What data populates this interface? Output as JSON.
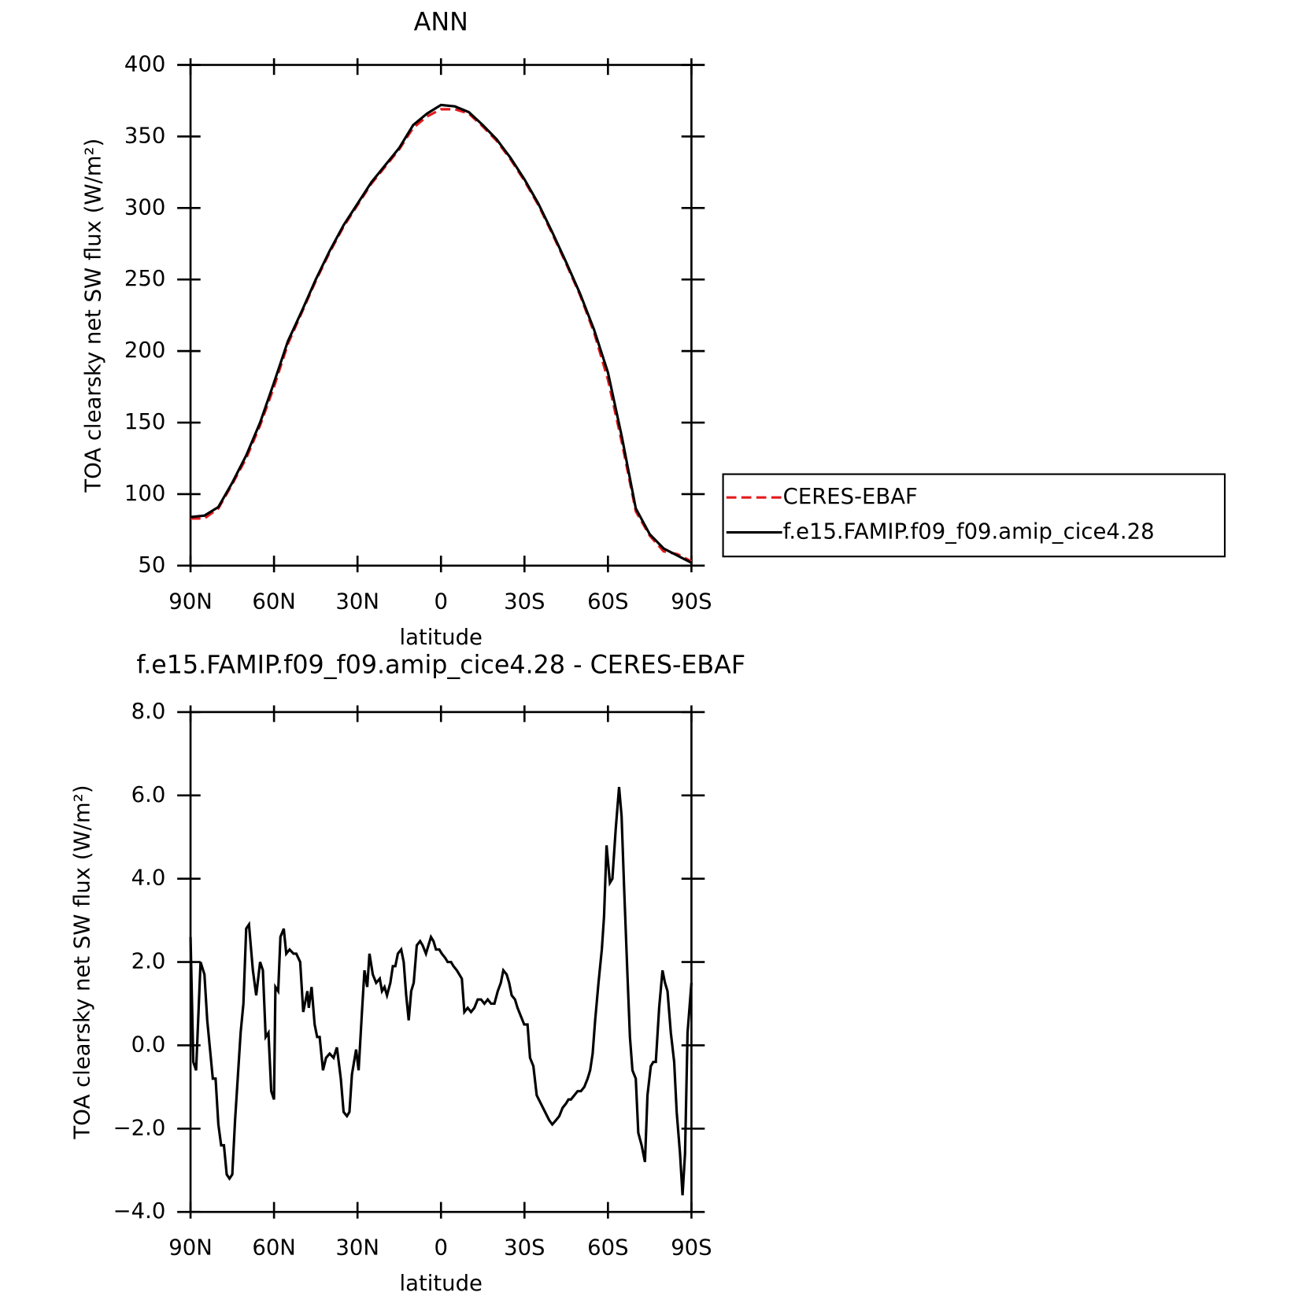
{
  "chart_data": [
    {
      "type": "line",
      "title": "ANN",
      "ylabel": "TOA clearsky net SW flux (W/m²)",
      "xlabel": "latitude",
      "x": [
        90,
        85,
        80,
        75,
        70,
        65,
        60,
        55,
        50,
        45,
        40,
        35,
        30,
        25,
        20,
        15,
        10,
        5,
        0,
        -5,
        -10,
        -15,
        -20,
        -25,
        -30,
        -35,
        -40,
        -45,
        -50,
        -55,
        -60,
        -65,
        -70,
        -75,
        -80,
        -85,
        -90
      ],
      "series": [
        {
          "name": "CERES-EBAF",
          "color": "#e41a1c",
          "style": "dashed",
          "values": [
            83,
            83,
            90,
            107,
            125,
            148,
            175,
            205,
            227,
            249,
            269,
            287,
            302,
            317,
            329,
            341,
            356,
            364,
            369,
            369,
            366,
            357,
            347,
            334,
            319,
            302,
            282,
            261,
            239,
            213,
            180,
            136,
            88,
            71,
            60,
            58,
            53
          ]
        },
        {
          "name": "f.e15.FAMIP.f09_f09.amip_cice4.28",
          "color": "#000000",
          "style": "solid",
          "values": [
            84,
            85,
            91,
            108,
            127,
            150,
            178,
            207,
            228,
            250,
            270,
            288,
            303,
            318,
            330,
            342,
            358,
            366,
            372,
            371,
            367,
            358,
            348,
            335,
            320,
            303,
            283,
            262,
            240,
            215,
            185,
            140,
            90,
            72,
            62,
            57,
            52
          ]
        }
      ],
      "xlim": [
        90,
        -90
      ],
      "xticks": [
        {
          "value": 90,
          "label": "90N"
        },
        {
          "value": 60,
          "label": "60N"
        },
        {
          "value": 30,
          "label": "30N"
        },
        0,
        {
          "value": -30,
          "label": "30S"
        },
        {
          "value": -60,
          "label": "60S"
        },
        {
          "value": -90,
          "label": "90S"
        }
      ],
      "ylim": [
        50,
        400
      ],
      "yticks": [
        50,
        100,
        150,
        200,
        250,
        300,
        350,
        400
      ],
      "legend": "right"
    },
    {
      "type": "line",
      "title": "f.e15.FAMIP.f09_f09.amip_cice4.28 - CERES-EBAF",
      "ylabel": "TOA clearsky net SW flux (W/m²)",
      "xlabel": "latitude",
      "x": [
        90,
        89,
        88,
        86.4,
        85,
        84,
        82,
        81,
        80,
        79,
        78,
        77,
        76,
        75,
        74,
        72,
        71,
        70,
        69,
        67.6,
        66.4,
        65,
        64,
        63,
        62,
        61,
        60,
        59.5,
        58.5,
        57.7,
        56.5,
        55.6,
        54.4,
        53,
        52,
        50.6,
        49.5,
        48,
        47.5,
        46.5,
        45.4,
        44.5,
        43.6,
        42.4,
        41.3,
        40,
        38.6,
        37.4,
        36,
        35,
        33.8,
        32.9,
        32,
        30.5,
        29.6,
        28.4,
        27.5,
        26.5,
        25.7,
        24.5,
        23.3,
        22,
        21.2,
        20.3,
        19.4,
        18.2,
        17.3,
        16.4,
        15.5,
        14.3,
        13.4,
        12.5,
        11.6,
        10.7,
        9.8,
        8.7,
        7.5,
        6.6,
        5.4,
        4.5,
        3.6,
        2.7,
        1.8,
        0.6,
        -0.3,
        -1.5,
        -2.4,
        -3.6,
        -4.5,
        -5.7,
        -6.6,
        -7.5,
        -8.4,
        -9.6,
        -10.8,
        -12,
        -13.2,
        -14.4,
        -15.6,
        -16.8,
        -18,
        -19.2,
        -20.4,
        -21.5,
        -22.4,
        -23.6,
        -24.5,
        -25.4,
        -26.6,
        -27.5,
        -28.7,
        -29.9,
        -31.1,
        -32,
        -33.2,
        -34.4,
        -35.9,
        -37.4,
        -38.9,
        -40,
        -41.3,
        -42.5,
        -43.7,
        -44.9,
        -45.8,
        -46.7,
        -47.9,
        -49.1,
        -50.3,
        -51.5,
        -52.7,
        -53.6,
        -54.5,
        -55.4,
        -56.6,
        -57.8,
        -58.6,
        -59.5,
        -60.7,
        -61.6,
        -62.8,
        -64,
        -64.9,
        -65.8,
        -67,
        -67.9,
        -68.8,
        -70,
        -70.9,
        -72.1,
        -73.3,
        -74.2,
        -75.4,
        -76.3,
        -77.2,
        -78.4,
        -79.6,
        -80.5,
        -81.4,
        -82.6,
        -83.8,
        -84.7,
        -85.9,
        -86.8,
        -87.7,
        -88.6,
        -90
      ],
      "values": [
        2.6,
        -0.4,
        -0.6,
        2.0,
        1.7,
        0.6,
        -0.8,
        -0.8,
        -1.9,
        -2.4,
        -2.4,
        -3.1,
        -3.2,
        -3.1,
        -1.8,
        0.3,
        1.0,
        2.8,
        2.9,
        1.8,
        1.2,
        2.0,
        1.8,
        0.2,
        0.3,
        -1.1,
        -1.3,
        1.4,
        1.3,
        2.6,
        2.8,
        2.2,
        2.3,
        2.2,
        2.2,
        2.0,
        0.8,
        1.3,
        0.9,
        1.4,
        0.5,
        0.2,
        0.2,
        -0.6,
        -0.3,
        -0.2,
        -0.3,
        -0.05,
        -0.8,
        -1.6,
        -1.7,
        -1.6,
        -0.7,
        -0.1,
        -0.6,
        0.8,
        1.8,
        1.4,
        2.2,
        1.7,
        1.5,
        1.6,
        1.3,
        1.4,
        1.2,
        1.5,
        1.9,
        1.9,
        2.2,
        2.3,
        2.0,
        1.2,
        0.6,
        1.3,
        1.5,
        2.4,
        2.5,
        2.4,
        2.2,
        2.4,
        2.6,
        2.5,
        2.3,
        2.3,
        2.2,
        2.1,
        2.0,
        2.0,
        1.9,
        1.8,
        1.7,
        1.6,
        0.8,
        0.9,
        0.8,
        0.9,
        1.1,
        1.1,
        1.0,
        1.1,
        1.0,
        1.0,
        1.3,
        1.5,
        1.8,
        1.7,
        1.5,
        1.2,
        1.1,
        0.9,
        0.7,
        0.5,
        0.5,
        -0.3,
        -0.5,
        -1.2,
        -1.4,
        -1.6,
        -1.8,
        -1.9,
        -1.8,
        -1.7,
        -1.5,
        -1.4,
        -1.3,
        -1.3,
        -1.2,
        -1.1,
        -1.1,
        -1.0,
        -0.8,
        -0.6,
        -0.2,
        0.6,
        1.5,
        2.3,
        3.1,
        4.8,
        3.9,
        4.0,
        5.2,
        6.2,
        5.5,
        3.8,
        1.7,
        0.2,
        -0.6,
        -0.8,
        -2.1,
        -2.4,
        -2.8,
        -1.2,
        -0.5,
        -0.4,
        -0.4,
        0.9,
        1.8,
        1.5,
        1.3,
        0.3,
        -0.4,
        -1.6,
        -2.6,
        -3.6,
        -2.6,
        0.3,
        1.5
      ],
      "color": "#000000",
      "xlim": [
        90,
        -90
      ],
      "xticks": [
        {
          "value": 90,
          "label": "90N"
        },
        {
          "value": 60,
          "label": "60N"
        },
        {
          "value": 30,
          "label": "30N"
        },
        0,
        {
          "value": -30,
          "label": "30S"
        },
        {
          "value": -60,
          "label": "60S"
        },
        {
          "value": -90,
          "label": "90S"
        }
      ],
      "ylim": [
        -4,
        8
      ],
      "yticks": [
        {
          "value": -4,
          "label": "−4.0"
        },
        {
          "value": -2,
          "label": "−2.0"
        },
        {
          "value": 0,
          "label": "0.0"
        },
        {
          "value": 2,
          "label": "2.0"
        },
        {
          "value": 4,
          "label": "4.0"
        },
        {
          "value": 6,
          "label": "6.0"
        },
        {
          "value": 8,
          "label": "8.0"
        }
      ]
    }
  ]
}
